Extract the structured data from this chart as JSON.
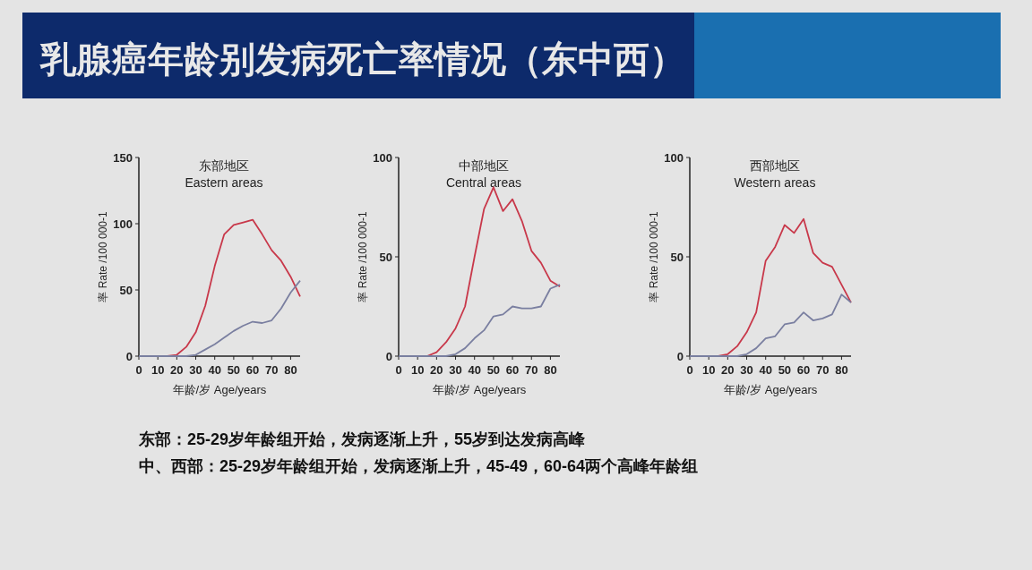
{
  "chart_data": [
    {
      "type": "line",
      "title": "东部地区",
      "subtitle": "Eastern areas",
      "xlabel": "年龄/岁 Age/years",
      "ylabel": "率 Rate /100 000-1",
      "x": [
        0,
        5,
        10,
        15,
        20,
        25,
        30,
        35,
        40,
        45,
        50,
        55,
        60,
        65,
        70,
        75,
        80,
        85
      ],
      "xlim": [
        0,
        85
      ],
      "xticks": [
        0,
        10,
        20,
        30,
        40,
        50,
        60,
        70,
        80
      ],
      "ylim": [
        0,
        150
      ],
      "yticks": [
        0,
        50,
        100,
        150
      ],
      "grid": false,
      "marker": "none",
      "series": [
        {
          "color": "#c8384a",
          "values": [
            null,
            null,
            0,
            0,
            1,
            7,
            18,
            38,
            68,
            92,
            99,
            101,
            103,
            92,
            80,
            72,
            60,
            45
          ]
        },
        {
          "color": "#7a7fa0",
          "values": [
            0,
            0,
            0,
            0,
            0,
            0,
            1,
            5,
            9,
            14,
            19,
            23,
            26,
            25,
            27,
            36,
            48,
            57
          ]
        }
      ],
      "annotations": [
        "乳腺癌年龄别发病死亡率情况（东中西）",
        "东部：25-29岁年龄组开始，发病逐渐上升，55岁到达发病高峰",
        "中、西部：25-29岁年龄组开始，发病逐渐上升，45-49，60-64两个高峰年龄组"
      ]
    },
    {
      "type": "line",
      "title": "中部地区",
      "subtitle": "Central areas",
      "xlabel": "年龄/岁 Age/years",
      "ylabel": "率 Rate /100 000-1",
      "x": [
        0,
        5,
        10,
        15,
        20,
        25,
        30,
        35,
        40,
        45,
        50,
        55,
        60,
        65,
        70,
        75,
        80,
        85
      ],
      "xlim": [
        0,
        85
      ],
      "xticks": [
        0,
        10,
        20,
        30,
        40,
        50,
        60,
        70,
        80
      ],
      "ylim": [
        0,
        100
      ],
      "yticks": [
        0,
        50,
        100
      ],
      "grid": false,
      "marker": "none",
      "series": [
        {
          "color": "#c8384a",
          "values": [
            null,
            null,
            0,
            0,
            2,
            7,
            14,
            25,
            50,
            74,
            85,
            73,
            79,
            68,
            53,
            47,
            38,
            35
          ]
        },
        {
          "color": "#7a7fa0",
          "values": [
            0,
            0,
            0,
            0,
            0,
            0,
            1,
            4,
            9,
            13,
            20,
            21,
            25,
            24,
            24,
            25,
            34,
            36
          ]
        }
      ]
    },
    {
      "type": "line",
      "title": "西部地区",
      "subtitle": "Western areas",
      "xlabel": "年龄/岁 Age/years",
      "ylabel": "率 Rate /100 000-1",
      "x": [
        0,
        5,
        10,
        15,
        20,
        25,
        30,
        35,
        40,
        45,
        50,
        55,
        60,
        65,
        70,
        75,
        80,
        85
      ],
      "xlim": [
        0,
        85
      ],
      "xticks": [
        0,
        10,
        20,
        30,
        40,
        50,
        60,
        70,
        80
      ],
      "ylim": [
        0,
        100
      ],
      "yticks": [
        0,
        50,
        100
      ],
      "grid": false,
      "marker": "none",
      "series": [
        {
          "color": "#c8384a",
          "values": [
            null,
            null,
            0,
            0,
            1,
            5,
            12,
            22,
            48,
            55,
            66,
            62,
            69,
            52,
            47,
            45,
            36,
            27
          ]
        },
        {
          "color": "#7a7fa0",
          "values": [
            0,
            0,
            0,
            0,
            0,
            0,
            1,
            4,
            9,
            10,
            16,
            17,
            22,
            18,
            19,
            21,
            31,
            27
          ]
        }
      ]
    }
  ]
}
